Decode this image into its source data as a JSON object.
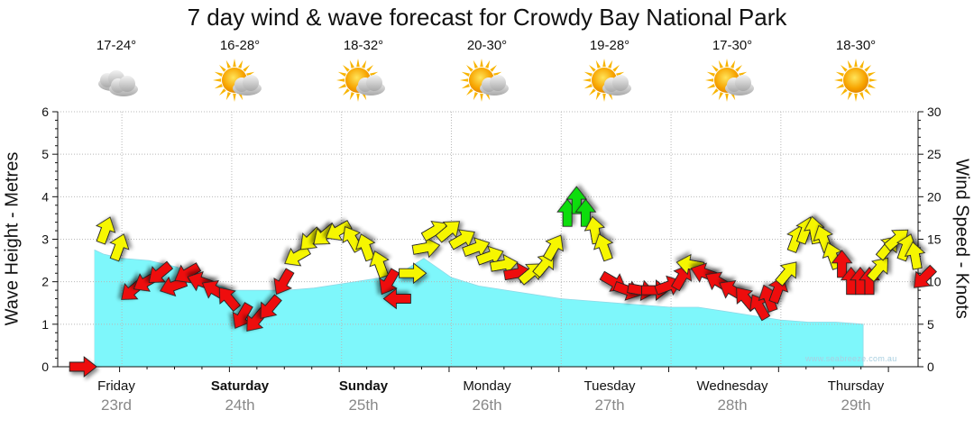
{
  "chart_data": {
    "type": "area",
    "title": "7 day wind & wave forecast for Crowdy Bay National Park",
    "ylabel_left": "Wave Height - Metres",
    "ylabel_right": "Wind Speed - Knots",
    "ylim_left": [
      0,
      6
    ],
    "ylim_right": [
      0,
      30
    ],
    "yticks_left": [
      "0",
      "1",
      "2",
      "3",
      "4",
      "5",
      "6"
    ],
    "yticks_right": [
      "0",
      "5",
      "10",
      "15",
      "20",
      "25",
      "30"
    ],
    "watermark": "www.seabreeze.com.au",
    "days": [
      {
        "name": "Friday",
        "date": "23rd",
        "bold": false,
        "temp": "17-24°",
        "icon": "cloudy"
      },
      {
        "name": "Saturday",
        "date": "24th",
        "bold": true,
        "temp": "16-28°",
        "icon": "partly-cloudy"
      },
      {
        "name": "Sunday",
        "date": "25th",
        "bold": true,
        "temp": "18-32°",
        "icon": "partly-cloudy"
      },
      {
        "name": "Monday",
        "date": "26th",
        "bold": false,
        "temp": "20-30°",
        "icon": "partly-cloudy"
      },
      {
        "name": "Tuesday",
        "date": "27th",
        "bold": false,
        "temp": "19-28°",
        "icon": "partly-cloudy"
      },
      {
        "name": "Wednesday",
        "date": "28th",
        "bold": false,
        "temp": "17-30°",
        "icon": "partly-cloudy"
      },
      {
        "name": "Thursday",
        "date": "29th",
        "bold": false,
        "temp": "18-30°",
        "icon": "sunny"
      }
    ],
    "wave_series": {
      "name": "Wave Height",
      "unit": "m",
      "x_hours": [
        0,
        2,
        6,
        12,
        18,
        24,
        30,
        36,
        42,
        48,
        54,
        60,
        66,
        72,
        78,
        84,
        90,
        96,
        102,
        108,
        114,
        120,
        126,
        132,
        138,
        144,
        150,
        156,
        162,
        168
      ],
      "values": [
        2.75,
        2.65,
        2.55,
        2.5,
        2.35,
        2.05,
        1.8,
        1.8,
        1.8,
        1.85,
        1.95,
        2.05,
        2.15,
        2.55,
        2.1,
        1.9,
        1.8,
        1.7,
        1.6,
        1.55,
        1.5,
        1.45,
        1.4,
        1.4,
        1.3,
        1.2,
        1.1,
        1.05,
        1.05,
        1.0
      ]
    },
    "wind_series": {
      "name": "Wind Speed",
      "unit": "knots",
      "points": [
        {
          "h": -5,
          "kt": 0,
          "dir": 270,
          "c": "red"
        },
        {
          "h": 0,
          "kt": 16,
          "dir": 200,
          "c": "yellow"
        },
        {
          "h": 3,
          "kt": 14,
          "dir": 200,
          "c": "yellow"
        },
        {
          "h": 6,
          "kt": 9,
          "dir": 50,
          "c": "red"
        },
        {
          "h": 9,
          "kt": 10,
          "dir": 60,
          "c": "red"
        },
        {
          "h": 12,
          "kt": 11,
          "dir": 50,
          "c": "red"
        },
        {
          "h": 15,
          "kt": 9.5,
          "dir": 70,
          "c": "red"
        },
        {
          "h": 18,
          "kt": 11,
          "dir": 60,
          "c": "red"
        },
        {
          "h": 21,
          "kt": 10,
          "dir": 110,
          "c": "red"
        },
        {
          "h": 24,
          "kt": 9,
          "dir": 120,
          "c": "red"
        },
        {
          "h": 27,
          "kt": 8,
          "dir": 140,
          "c": "red"
        },
        {
          "h": 30,
          "kt": 6,
          "dir": 30,
          "c": "red"
        },
        {
          "h": 33,
          "kt": 5.5,
          "dir": 40,
          "c": "red"
        },
        {
          "h": 36,
          "kt": 7,
          "dir": 40,
          "c": "red"
        },
        {
          "h": 39,
          "kt": 10,
          "dir": 30,
          "c": "red"
        },
        {
          "h": 42,
          "kt": 13,
          "dir": 60,
          "c": "yellow"
        },
        {
          "h": 45,
          "kt": 15,
          "dir": 45,
          "c": "yellow"
        },
        {
          "h": 48,
          "kt": 15.5,
          "dir": 50,
          "c": "yellow"
        },
        {
          "h": 51,
          "kt": 16,
          "dir": 60,
          "c": "yellow"
        },
        {
          "h": 54,
          "kt": 15,
          "dir": 150,
          "c": "yellow"
        },
        {
          "h": 57,
          "kt": 14,
          "dir": 160,
          "c": "yellow"
        },
        {
          "h": 60,
          "kt": 12,
          "dir": 160,
          "c": "yellow"
        },
        {
          "h": 62,
          "kt": 10,
          "dir": 30,
          "c": "red"
        },
        {
          "h": 64,
          "kt": 8,
          "dir": 90,
          "c": "red"
        },
        {
          "h": 67,
          "kt": 11,
          "dir": 270,
          "c": "yellow"
        },
        {
          "h": 70,
          "kt": 14,
          "dir": 260,
          "c": "yellow"
        },
        {
          "h": 72,
          "kt": 16,
          "dir": 240,
          "c": "yellow"
        },
        {
          "h": 75,
          "kt": 16,
          "dir": 230,
          "c": "yellow"
        },
        {
          "h": 78,
          "kt": 15,
          "dir": 240,
          "c": "yellow"
        },
        {
          "h": 81,
          "kt": 14,
          "dir": 250,
          "c": "yellow"
        },
        {
          "h": 84,
          "kt": 13,
          "dir": 250,
          "c": "yellow"
        },
        {
          "h": 87,
          "kt": 12,
          "dir": 260,
          "c": "yellow"
        },
        {
          "h": 90,
          "kt": 11,
          "dir": 260,
          "c": "red"
        },
        {
          "h": 93,
          "kt": 11,
          "dir": 230,
          "c": "yellow"
        },
        {
          "h": 96,
          "kt": 12,
          "dir": 220,
          "c": "yellow"
        },
        {
          "h": 98,
          "kt": 14,
          "dir": 210,
          "c": "yellow"
        },
        {
          "h": 101,
          "kt": 18,
          "dir": 180,
          "c": "green"
        },
        {
          "h": 103,
          "kt": 19.5,
          "dir": 180,
          "c": "green"
        },
        {
          "h": 105,
          "kt": 18,
          "dir": 180,
          "c": "green"
        },
        {
          "h": 107,
          "kt": 16,
          "dir": 170,
          "c": "yellow"
        },
        {
          "h": 109,
          "kt": 14,
          "dir": 160,
          "c": "yellow"
        },
        {
          "h": 111,
          "kt": 10,
          "dir": 300,
          "c": "red"
        },
        {
          "h": 114,
          "kt": 9,
          "dir": 290,
          "c": "red"
        },
        {
          "h": 117,
          "kt": 9,
          "dir": 280,
          "c": "red"
        },
        {
          "h": 120,
          "kt": 9,
          "dir": 270,
          "c": "red"
        },
        {
          "h": 123,
          "kt": 9.5,
          "dir": 250,
          "c": "red"
        },
        {
          "h": 126,
          "kt": 10.5,
          "dir": 210,
          "c": "red"
        },
        {
          "h": 128,
          "kt": 12,
          "dir": 100,
          "c": "yellow"
        },
        {
          "h": 131,
          "kt": 11,
          "dir": 110,
          "c": "red"
        },
        {
          "h": 134,
          "kt": 10,
          "dir": 120,
          "c": "red"
        },
        {
          "h": 137,
          "kt": 9,
          "dir": 120,
          "c": "red"
        },
        {
          "h": 140,
          "kt": 8,
          "dir": 140,
          "c": "red"
        },
        {
          "h": 143,
          "kt": 7,
          "dir": 150,
          "c": "red"
        },
        {
          "h": 145,
          "kt": 8,
          "dir": 160,
          "c": "red"
        },
        {
          "h": 147,
          "kt": 9,
          "dir": 200,
          "c": "red"
        },
        {
          "h": 149,
          "kt": 11,
          "dir": 220,
          "c": "yellow"
        },
        {
          "h": 151,
          "kt": 15,
          "dir": 200,
          "c": "yellow"
        },
        {
          "h": 153,
          "kt": 16,
          "dir": 200,
          "c": "yellow"
        },
        {
          "h": 155,
          "kt": 16,
          "dir": 170,
          "c": "yellow"
        },
        {
          "h": 157,
          "kt": 15,
          "dir": 160,
          "c": "yellow"
        },
        {
          "h": 159,
          "kt": 13,
          "dir": 160,
          "c": "yellow"
        },
        {
          "h": 161,
          "kt": 12,
          "dir": 180,
          "c": "red"
        },
        {
          "h": 163,
          "kt": 10,
          "dir": 180,
          "c": "red"
        },
        {
          "h": 165,
          "kt": 10,
          "dir": 180,
          "c": "red"
        },
        {
          "h": 167,
          "kt": 10,
          "dir": 180,
          "c": "red"
        },
        {
          "h": 169,
          "kt": 11.5,
          "dir": 220,
          "c": "yellow"
        },
        {
          "h": 171,
          "kt": 14,
          "dir": 220,
          "c": "yellow"
        },
        {
          "h": 173,
          "kt": 15,
          "dir": 230,
          "c": "yellow"
        },
        {
          "h": 175,
          "kt": 14,
          "dir": 200,
          "c": "yellow"
        },
        {
          "h": 177,
          "kt": 13,
          "dir": 170,
          "c": "yellow"
        },
        {
          "h": 179,
          "kt": 10.5,
          "dir": 45,
          "c": "red"
        }
      ]
    },
    "colors": {
      "wave_fill": "#7ef7fb",
      "wave_fill_past": "#d9eef3",
      "arrow_red": "#ee1111",
      "arrow_yellow": "#f6f600",
      "arrow_green": "#11dd11",
      "grid": "#b8b8b8"
    }
  }
}
